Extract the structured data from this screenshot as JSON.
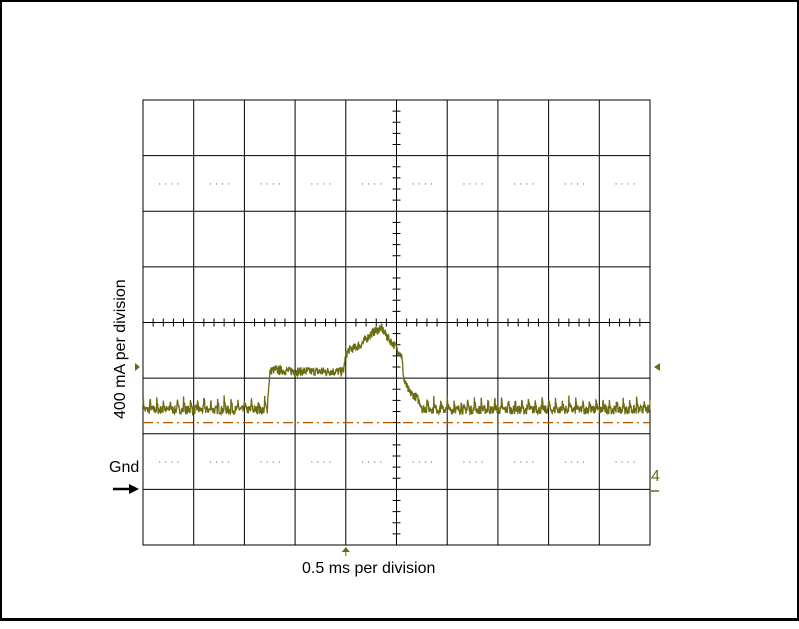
{
  "chart_data": {
    "type": "line",
    "xlabel": "0.5 ms per division",
    "ylabel": "400 mA per division",
    "ground_label": "Gnd",
    "channel_marker": "4",
    "grid": true,
    "divisions": {
      "x": 10,
      "y": 8
    },
    "xlim": [
      0,
      10
    ],
    "ylim": [
      -2.2,
      5.8
    ],
    "trace_color": "#6b6b12",
    "reference_color": "#b35a00",
    "grid_color": "#000000",
    "reference_level": 0,
    "series": [
      {
        "x": [
          0,
          0.5,
          1.0,
          1.5,
          2.0,
          2.45,
          2.5,
          2.55,
          3.0,
          3.5,
          3.95,
          4.0,
          4.05,
          4.3,
          4.5,
          4.7,
          4.85,
          5.0,
          5.1,
          5.15,
          5.25,
          5.4,
          5.5,
          6.0,
          6.5,
          7.0,
          7.5,
          8.0,
          8.5,
          9.0,
          9.5,
          10.0
        ],
        "y": [
          0.28,
          0.28,
          0.28,
          0.28,
          0.28,
          0.28,
          0.9,
          0.95,
          0.92,
          0.92,
          0.92,
          1.2,
          1.3,
          1.4,
          1.6,
          1.7,
          1.5,
          1.35,
          1.2,
          0.75,
          0.55,
          0.45,
          0.3,
          0.28,
          0.28,
          0.28,
          0.28,
          0.28,
          0.28,
          0.28,
          0.28,
          0.28
        ]
      }
    ]
  }
}
